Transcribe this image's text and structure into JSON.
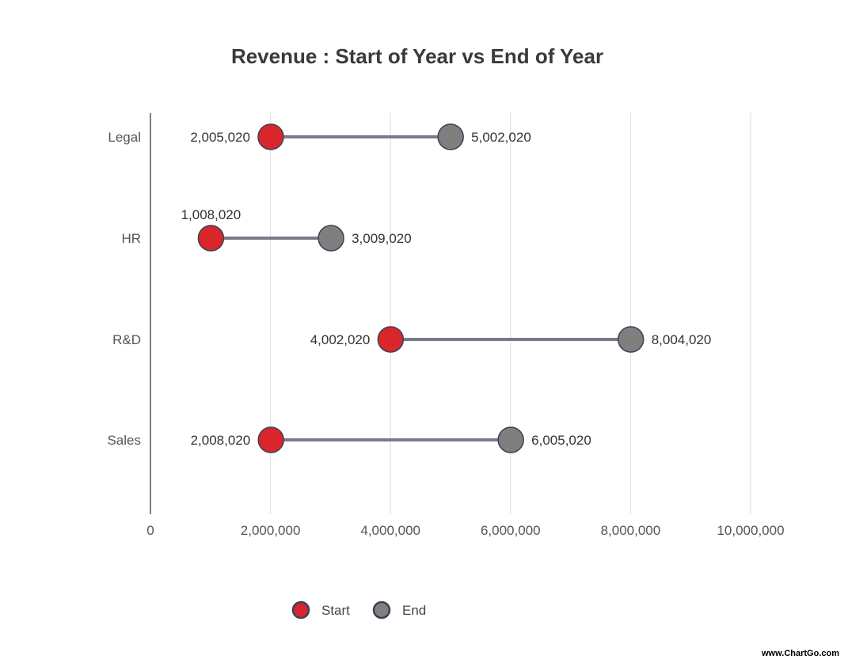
{
  "chart_data": {
    "type": "dumbbell",
    "title": "Revenue : Start of Year vs End of Year",
    "categories": [
      "Legal",
      "HR",
      "R&D",
      "Sales"
    ],
    "series": [
      {
        "name": "Start",
        "values": [
          2005020,
          1008020,
          4002020,
          2008020
        ],
        "color": "#d9262b"
      },
      {
        "name": "End",
        "values": [
          5002020,
          3009020,
          8004020,
          6005020
        ],
        "color": "#7f7f7f"
      }
    ],
    "data_labels": {
      "Start": [
        "2,005,020",
        "1,008,020",
        "4,002,020",
        "2,008,020"
      ],
      "End": [
        "5,002,020",
        "3,009,020",
        "8,004,020",
        "6,005,020"
      ]
    },
    "xlim": [
      0,
      10000000
    ],
    "x_ticks": [
      0,
      2000000,
      4000000,
      6000000,
      8000000,
      10000000
    ],
    "x_tick_labels": [
      "0",
      "2,000,000",
      "4,000,000",
      "6,000,000",
      "8,000,000",
      "10,000,000"
    ],
    "grid": "vertical",
    "legend": "bottom",
    "connector_color": "#777c88"
  },
  "watermark": "www.ChartGo.com"
}
